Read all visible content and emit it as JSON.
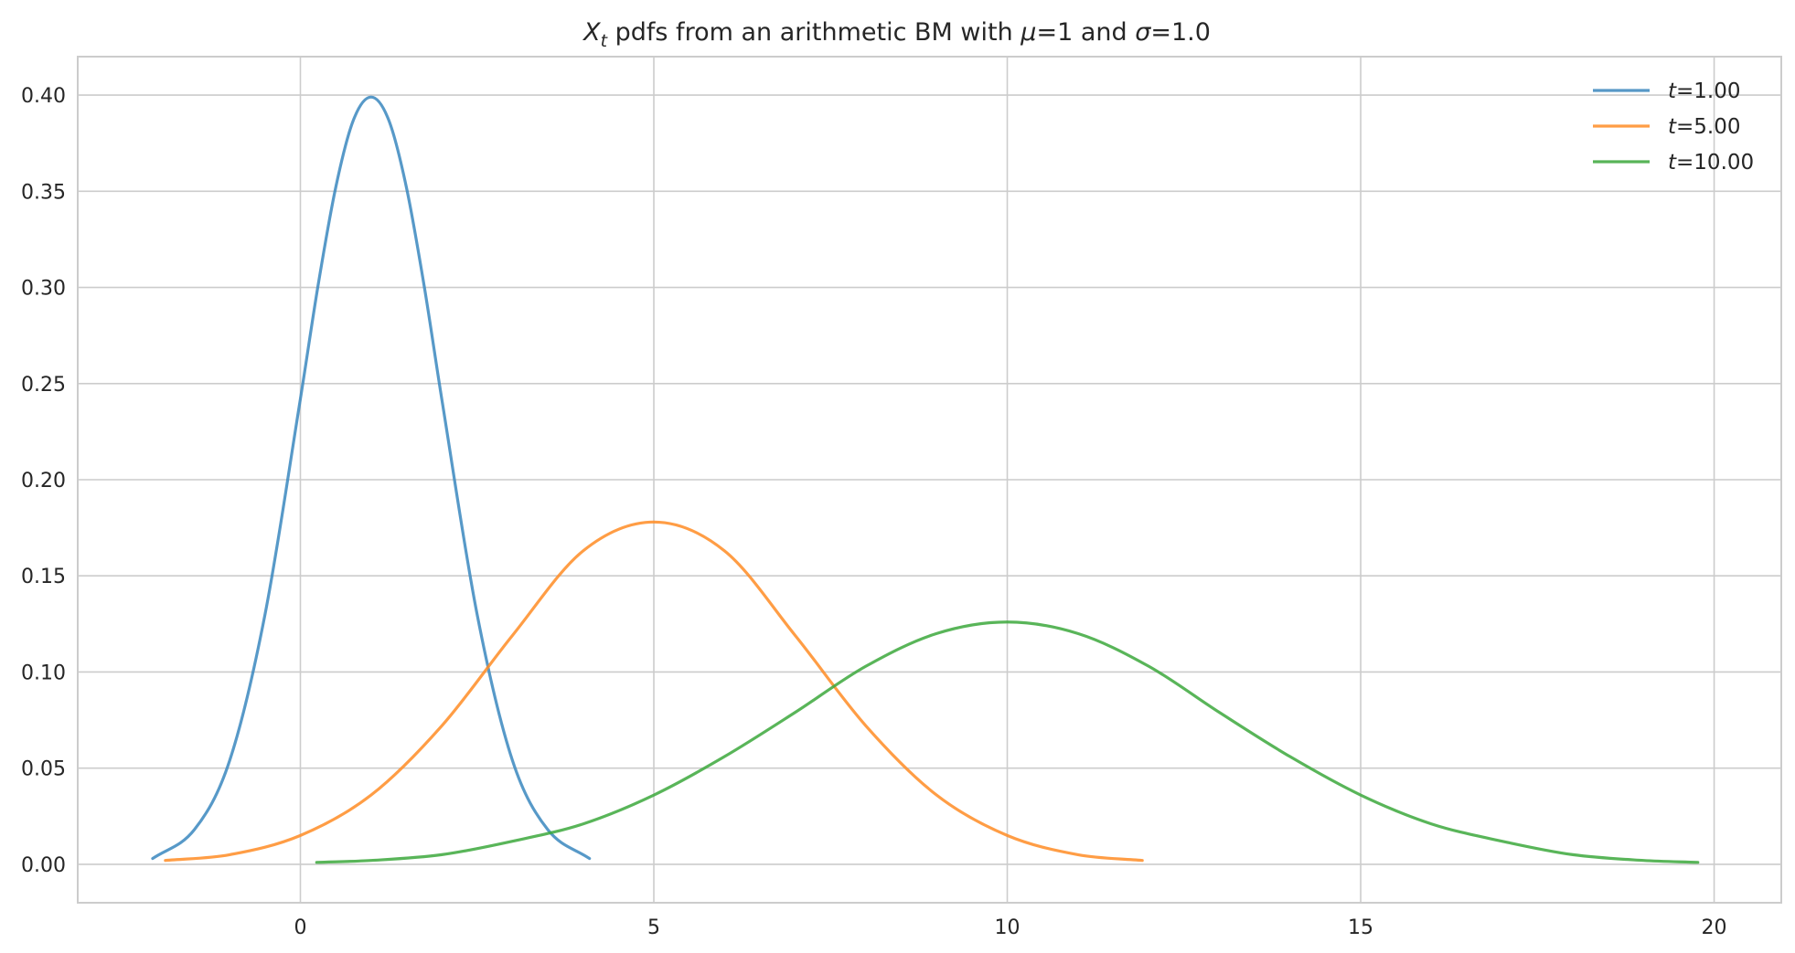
{
  "chart_data": {
    "type": "line",
    "title": {
      "var": "X",
      "sub": "t",
      "pre": " pdfs from an arithmetic BM with ",
      "mu_sym": "μ",
      "mid": "=1 and ",
      "sigma_sym": "σ",
      "post": "=1.0"
    },
    "xlabel": "",
    "ylabel": "",
    "xlim": [
      -3.15,
      20.95
    ],
    "ylim": [
      -0.02,
      0.42
    ],
    "xticks": [
      0,
      5,
      10,
      15,
      20
    ],
    "xtick_labels": [
      "0",
      "5",
      "10",
      "15",
      "20"
    ],
    "yticks": [
      0.0,
      0.05,
      0.1,
      0.15,
      0.2,
      0.25,
      0.3,
      0.35,
      0.4
    ],
    "ytick_labels": [
      "0.00",
      "0.05",
      "0.10",
      "0.15",
      "0.20",
      "0.25",
      "0.30",
      "0.35",
      "0.40"
    ],
    "grid": true,
    "legend_position": "top-right",
    "series": [
      {
        "name": "t=1.00",
        "legend_var": "t",
        "legend_val": "=1.00",
        "color": "#3a87be",
        "x": [
          -2.09,
          -1.5,
          -1.0,
          -0.5,
          0.0,
          0.25,
          0.5,
          0.75,
          1.0,
          1.25,
          1.5,
          1.75,
          2.0,
          2.5,
          3.0,
          3.5,
          4.09
        ],
        "y": [
          0.003,
          0.018,
          0.054,
          0.13,
          0.242,
          0.301,
          0.352,
          0.387,
          0.399,
          0.387,
          0.352,
          0.301,
          0.242,
          0.13,
          0.054,
          0.018,
          0.003
        ]
      },
      {
        "name": "t=5.00",
        "legend_var": "t",
        "legend_val": "=5.00",
        "color": "#ff8c25",
        "x": [
          -1.91,
          -1.0,
          0.0,
          1.0,
          2.0,
          3.0,
          4.0,
          5.0,
          6.0,
          7.0,
          8.0,
          9.0,
          10.0,
          11.0,
          11.91
        ],
        "y": [
          0.002,
          0.005,
          0.015,
          0.036,
          0.072,
          0.119,
          0.163,
          0.178,
          0.163,
          0.119,
          0.072,
          0.036,
          0.015,
          0.005,
          0.002
        ]
      },
      {
        "name": "t=10.00",
        "legend_var": "t",
        "legend_val": "=10.00",
        "color": "#3ca83c",
        "x": [
          0.23,
          1.0,
          2.0,
          3.0,
          4.0,
          5.0,
          6.0,
          7.0,
          8.0,
          9.0,
          10.0,
          11.0,
          12.0,
          13.0,
          14.0,
          15.0,
          16.0,
          17.0,
          18.0,
          19.0,
          19.77
        ],
        "y": [
          0.001,
          0.002,
          0.005,
          0.012,
          0.021,
          0.036,
          0.056,
          0.079,
          0.103,
          0.12,
          0.126,
          0.12,
          0.103,
          0.079,
          0.056,
          0.036,
          0.021,
          0.012,
          0.005,
          0.002,
          0.001
        ]
      }
    ]
  }
}
